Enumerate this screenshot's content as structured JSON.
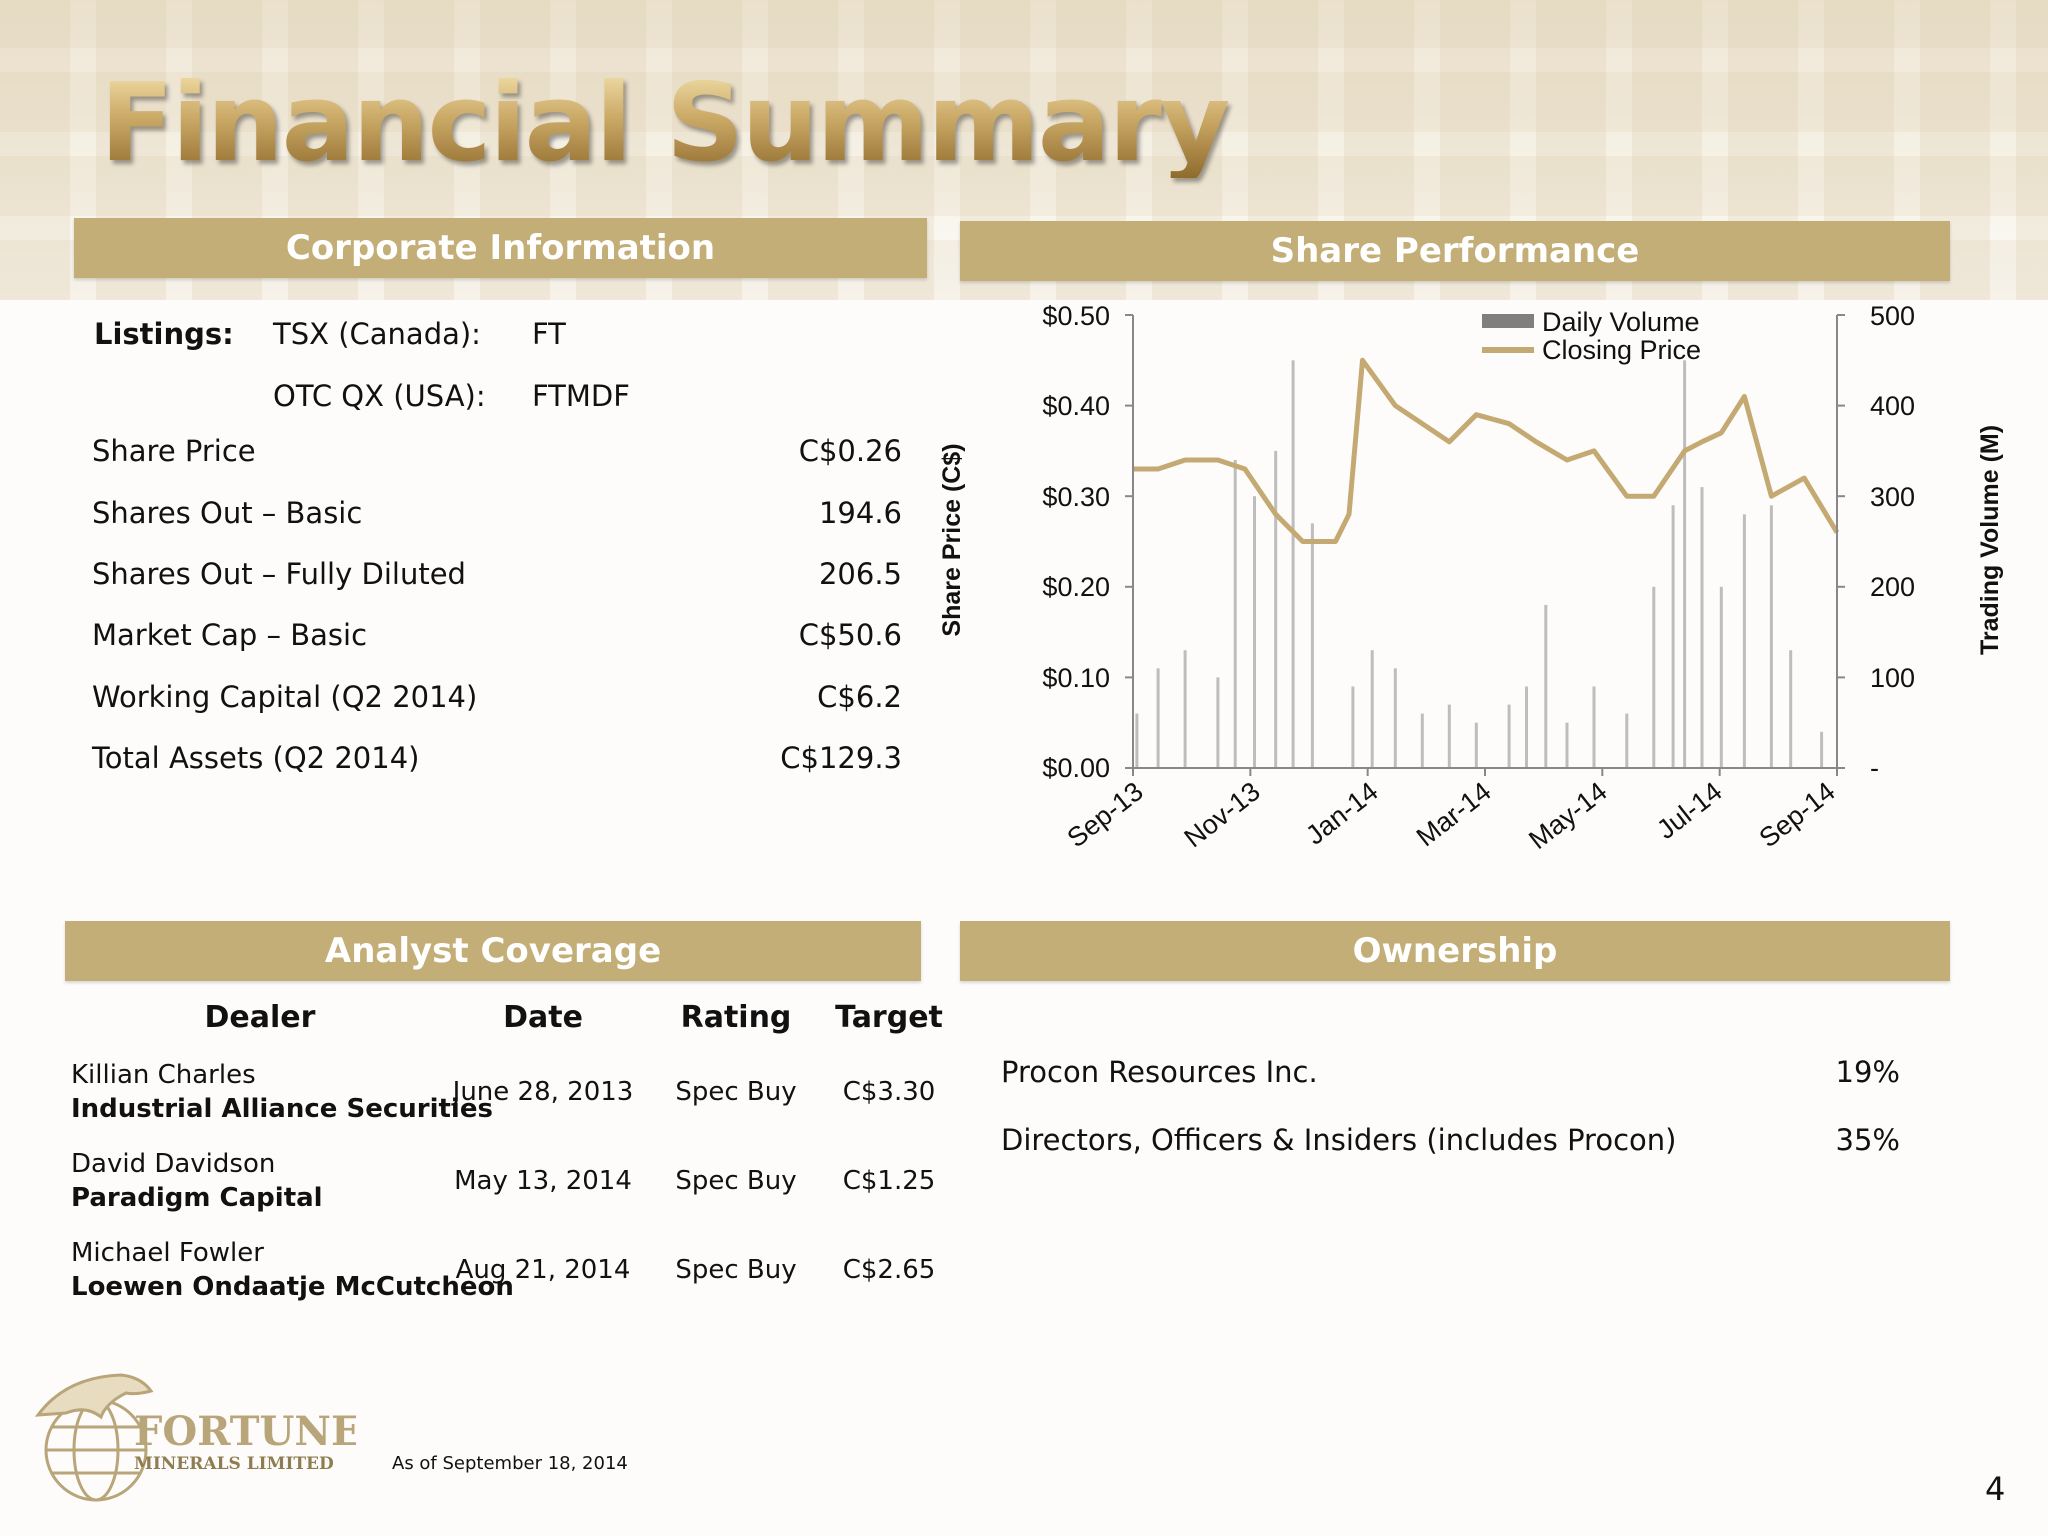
{
  "title": "Financial Summary",
  "sections": {
    "corporate": "Corporate Information",
    "share": "Share Performance",
    "analyst": "Analyst Coverage",
    "ownership": "Ownership"
  },
  "corporate": {
    "listings_label": "Listings:",
    "tsx_label": "TSX (Canada):",
    "tsx_value": "FT",
    "otc_label": "OTC  QX (USA):",
    "otc_value": "FTMDF",
    "rows": [
      {
        "label": "Share Price",
        "value": "C$0.26"
      },
      {
        "label": "Shares Out – Basic",
        "value": "194.6"
      },
      {
        "label": "Shares Out – Fully Diluted",
        "value": "206.5"
      },
      {
        "label": "Market Cap – Basic",
        "value": "C$50.6"
      },
      {
        "label": "Working Capital (Q2 2014)",
        "value": "C$6.2"
      },
      {
        "label": "Total Assets (Q2 2014)",
        "value": "C$129.3"
      }
    ]
  },
  "analyst": {
    "headers": [
      "Dealer",
      "Date",
      "Rating",
      "Target"
    ],
    "rows": [
      {
        "analyst": "Killian Charles",
        "firm": "Industrial Alliance Securities",
        "date": "June 28, 2013",
        "rating": "Spec Buy",
        "target": "C$3.30"
      },
      {
        "analyst": "David Davidson",
        "firm": "Paradigm Capital",
        "date": "May 13, 2014",
        "rating": "Spec Buy",
        "target": "C$1.25"
      },
      {
        "analyst": "Michael Fowler",
        "firm": "Loewen Ondaatje McCutcheon",
        "date": "Aug 21, 2014",
        "rating": "Spec Buy",
        "target": "C$2.65"
      }
    ]
  },
  "ownership": {
    "rows": [
      {
        "holder": "Procon Resources Inc.",
        "pct": "19%"
      },
      {
        "holder": "Directors, Officers & Insiders (includes Procon)",
        "pct": "35%"
      }
    ]
  },
  "footer": {
    "logo_name": "FORTUNE",
    "logo_sub": "MINERALS LIMITED",
    "as_of": "As of September 18, 2014",
    "page": "4"
  },
  "colors": {
    "header_bar": "#c4ae77",
    "price_line": "#c4aa72",
    "volume_bar": "#bdbdbd"
  },
  "chart_data": {
    "type": "line",
    "series": [
      {
        "name": "Closing Price",
        "axis": "left",
        "x": [
          "2013-09-18",
          "2013-10-01",
          "2013-10-15",
          "2013-11-01",
          "2013-11-15",
          "2013-12-01",
          "2013-12-15",
          "2014-01-01",
          "2014-01-08",
          "2014-01-15",
          "2014-02-01",
          "2014-02-15",
          "2014-03-01",
          "2014-03-15",
          "2014-04-01",
          "2014-04-15",
          "2014-05-01",
          "2014-05-15",
          "2014-06-01",
          "2014-06-15",
          "2014-07-01",
          "2014-07-10",
          "2014-07-20",
          "2014-08-01",
          "2014-08-15",
          "2014-09-01",
          "2014-09-18"
        ],
        "values": [
          0.33,
          0.33,
          0.34,
          0.34,
          0.33,
          0.28,
          0.25,
          0.25,
          0.28,
          0.45,
          0.4,
          0.38,
          0.36,
          0.39,
          0.38,
          0.36,
          0.34,
          0.35,
          0.3,
          0.3,
          0.35,
          0.36,
          0.37,
          0.41,
          0.3,
          0.32,
          0.26
        ]
      },
      {
        "name": "Daily Volume",
        "axis": "right",
        "type": "bar",
        "x": [
          "2013-09-20",
          "2013-10-01",
          "2013-10-15",
          "2013-11-01",
          "2013-11-10",
          "2013-11-20",
          "2013-12-01",
          "2013-12-10",
          "2013-12-20",
          "2014-01-10",
          "2014-01-20",
          "2014-02-01",
          "2014-02-15",
          "2014-03-01",
          "2014-03-15",
          "2014-04-01",
          "2014-04-10",
          "2014-04-20",
          "2014-05-01",
          "2014-05-15",
          "2014-06-01",
          "2014-06-15",
          "2014-06-25",
          "2014-07-01",
          "2014-07-10",
          "2014-07-20",
          "2014-08-01",
          "2014-08-15",
          "2014-08-25",
          "2014-09-10"
        ],
        "values": [
          60,
          110,
          130,
          100,
          340,
          300,
          350,
          450,
          270,
          90,
          130,
          110,
          60,
          70,
          50,
          70,
          90,
          180,
          50,
          90,
          60,
          200,
          290,
          450,
          310,
          200,
          280,
          290,
          130,
          40
        ]
      }
    ],
    "x_ticks": [
      "Sep-13",
      "Nov-13",
      "Jan-14",
      "Mar-14",
      "May-14",
      "Jul-14",
      "Sep-14"
    ],
    "y_left": {
      "label": "Share Price (C$)",
      "ticks": [
        "$0.50",
        "$0.40",
        "$0.30",
        "$0.20",
        "$0.10",
        "$0.00"
      ],
      "ylim": [
        0,
        0.5
      ]
    },
    "y_right": {
      "label": "Trading Volume (M)",
      "ticks": [
        "500",
        "400",
        "300",
        "200",
        "100",
        "-"
      ],
      "ylim": [
        0,
        500
      ]
    },
    "legend": [
      "Daily Volume",
      "Closing Price"
    ],
    "legend_position": "top-right",
    "grid": false
  }
}
